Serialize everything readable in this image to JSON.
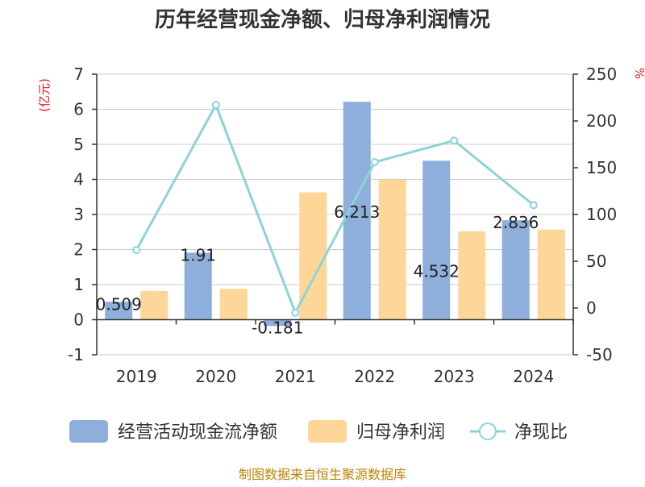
{
  "chart_data": {
    "type": "bar",
    "title": "历年经营现金净额、归母净利润情况",
    "categories": [
      "2019",
      "2020",
      "2021",
      "2022",
      "2023",
      "2024"
    ],
    "series": [
      {
        "name": "经营活动现金流净额",
        "type": "bar",
        "axis": "left",
        "values": [
          0.509,
          1.91,
          -0.181,
          6.213,
          4.532,
          2.836
        ],
        "labels": [
          "0.509",
          "1.91",
          "-0.181",
          "6.213",
          "4.532",
          "2.836"
        ],
        "color": "#8eaedb"
      },
      {
        "name": "归母净利润",
        "type": "bar",
        "axis": "left",
        "values": [
          0.82,
          0.88,
          3.63,
          3.99,
          2.52,
          2.57
        ],
        "color": "#fdd698"
      },
      {
        "name": "净现比",
        "type": "line",
        "axis": "right",
        "values": [
          62,
          217,
          -5,
          156,
          179,
          110
        ],
        "color": "#8dd3d7"
      }
    ],
    "y_left": {
      "label": "(亿元)",
      "ylim": [
        -1,
        7
      ],
      "ticks": [
        "-1",
        "0",
        "1",
        "2",
        "3",
        "4",
        "5",
        "6",
        "7"
      ]
    },
    "y_right": {
      "label": "%",
      "ylim": [
        -50,
        250
      ],
      "ticks": [
        "-50",
        "0",
        "50",
        "100",
        "150",
        "200",
        "250"
      ]
    },
    "grid": true,
    "legend_position": "bottom",
    "title_color": "#333333",
    "axis_label_color": "#e8191c"
  },
  "footer": {
    "source": "制图数据来自恒生聚源数据库",
    "color": "#b8860b"
  }
}
